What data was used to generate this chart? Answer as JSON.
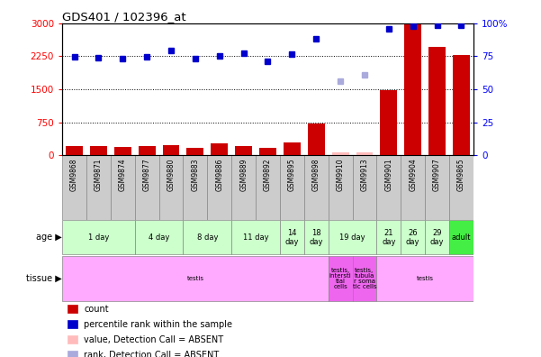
{
  "title": "GDS401 / 102396_at",
  "samples": [
    "GSM9868",
    "GSM9871",
    "GSM9874",
    "GSM9877",
    "GSM9880",
    "GSM9883",
    "GSM9886",
    "GSM9889",
    "GSM9892",
    "GSM9895",
    "GSM9898",
    "GSM9910",
    "GSM9913",
    "GSM9901",
    "GSM9904",
    "GSM9907",
    "GSM9865"
  ],
  "count_values": [
    200,
    200,
    195,
    215,
    230,
    175,
    265,
    200,
    165,
    285,
    720,
    60,
    65,
    1470,
    3000,
    2460,
    2280
  ],
  "count_absent": [
    false,
    false,
    false,
    false,
    false,
    false,
    false,
    false,
    false,
    false,
    false,
    true,
    true,
    false,
    false,
    false,
    false
  ],
  "rank_values": [
    2230,
    2220,
    2200,
    2240,
    2390,
    2200,
    2250,
    2310,
    2140,
    2290,
    2650,
    1680,
    1820,
    2880,
    2940,
    2960,
    2960
  ],
  "rank_absent": [
    false,
    false,
    false,
    false,
    false,
    false,
    false,
    false,
    false,
    false,
    false,
    true,
    true,
    false,
    false,
    false,
    false
  ],
  "yticks_left": [
    0,
    750,
    1500,
    2250,
    3000
  ],
  "yticks_right_labels": [
    "0",
    "25",
    "50",
    "75",
    "100%"
  ],
  "bar_color": "#cc0000",
  "bar_absent_color": "#ffbbbb",
  "dot_color": "#0000cc",
  "dot_absent_color": "#aaaadd",
  "age_groups": [
    {
      "label": "1 day",
      "start": 0,
      "end": 2,
      "color": "#ccffcc"
    },
    {
      "label": "4 day",
      "start": 3,
      "end": 4,
      "color": "#ccffcc"
    },
    {
      "label": "8 day",
      "start": 5,
      "end": 6,
      "color": "#ccffcc"
    },
    {
      "label": "11 day",
      "start": 7,
      "end": 8,
      "color": "#ccffcc"
    },
    {
      "label": "14\nday",
      "start": 9,
      "end": 9,
      "color": "#ccffcc"
    },
    {
      "label": "18\nday",
      "start": 10,
      "end": 10,
      "color": "#ccffcc"
    },
    {
      "label": "19 day",
      "start": 11,
      "end": 12,
      "color": "#ccffcc"
    },
    {
      "label": "21\nday",
      "start": 13,
      "end": 13,
      "color": "#ccffcc"
    },
    {
      "label": "26\nday",
      "start": 14,
      "end": 14,
      "color": "#ccffcc"
    },
    {
      "label": "29\nday",
      "start": 15,
      "end": 15,
      "color": "#ccffcc"
    },
    {
      "label": "adult",
      "start": 16,
      "end": 16,
      "color": "#44ee44"
    }
  ],
  "tissue_groups": [
    {
      "label": "testis",
      "start": 0,
      "end": 10,
      "color": "#ffaaff"
    },
    {
      "label": "testis,\nintersti\ntial\ncells",
      "start": 11,
      "end": 11,
      "color": "#ee66ee"
    },
    {
      "label": "testis,\ntubula\nr soma\ntic cells",
      "start": 12,
      "end": 12,
      "color": "#ee66ee"
    },
    {
      "label": "testis",
      "start": 13,
      "end": 16,
      "color": "#ffaaff"
    }
  ],
  "legend_items": [
    {
      "color": "#cc0000",
      "label": "count"
    },
    {
      "color": "#0000cc",
      "label": "percentile rank within the sample"
    },
    {
      "color": "#ffbbbb",
      "label": "value, Detection Call = ABSENT"
    },
    {
      "color": "#aaaadd",
      "label": "rank, Detection Call = ABSENT"
    }
  ],
  "bg_color": "#ffffff",
  "sample_bg": "#cccccc"
}
